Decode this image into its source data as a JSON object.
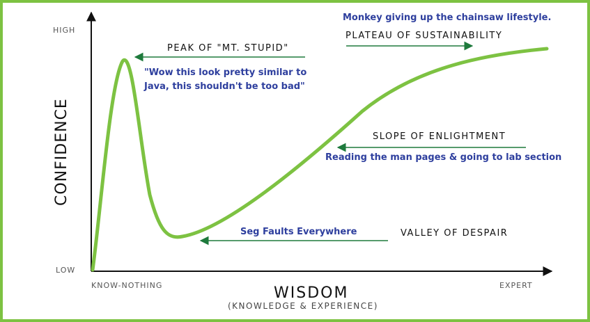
{
  "axes": {
    "y_title": "CONFIDENCE",
    "y_high": "HIGH",
    "y_low": "LOW",
    "x_title": "WISDOM",
    "x_subtitle": "(KNOWLEDGE & EXPERIENCE)",
    "x_start": "KNOW-NOTHING",
    "x_end": "EXPERT"
  },
  "stages": {
    "peak": "PEAK OF \"MT. STUPID\"",
    "plateau": "PLATEAU OF SUSTAINABILITY",
    "slope": "SLOPE OF ENLIGHTMENT",
    "valley": "VALLEY OF DESPAIR"
  },
  "notes": {
    "peak": "\"Wow this look pretty similar to Java, this shouldn't be too bad\"",
    "plateau": "Monkey giving up the chainsaw lifestyle.",
    "slope": "Reading the man pages & going to lab section",
    "valley": "Seg Faults Everywhere"
  },
  "colors": {
    "curve": "#7dc242",
    "arrow": "#1e7a3c",
    "note_text": "#2e3f9e",
    "border": "#7dc242"
  }
}
